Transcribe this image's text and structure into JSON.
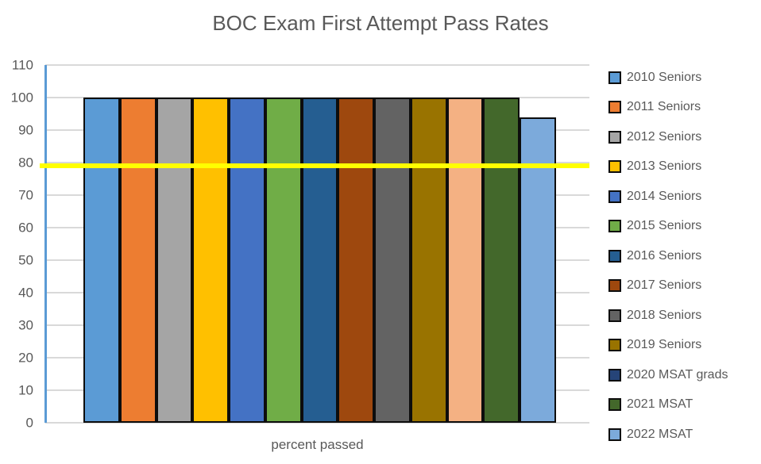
{
  "chart_data": {
    "type": "bar",
    "title": "BOC Exam First Attempt Pass Rates",
    "xlabel": "percent passed",
    "ylabel": "",
    "ylim": [
      0,
      110
    ],
    "yticks": [
      0,
      10,
      20,
      30,
      40,
      50,
      60,
      70,
      80,
      90,
      100,
      110
    ],
    "grid": true,
    "legend_position": "right",
    "series": [
      {
        "name": "2010 Seniors",
        "value": 100,
        "bar_color": "#5B9BD5",
        "legend_color": "#5B9BD5"
      },
      {
        "name": "2011 Seniors",
        "value": 100,
        "bar_color": "#ED7D31",
        "legend_color": "#ED7D31"
      },
      {
        "name": "2012 Seniors",
        "value": 100,
        "bar_color": "#A5A5A5",
        "legend_color": "#A5A5A5"
      },
      {
        "name": "2013 Seniors",
        "value": 100,
        "bar_color": "#FFC000",
        "legend_color": "#FFC000"
      },
      {
        "name": "2014 Seniors",
        "value": 100,
        "bar_color": "#4472C4",
        "legend_color": "#4472C4"
      },
      {
        "name": "2015 Seniors",
        "value": 100,
        "bar_color": "#70AD47",
        "legend_color": "#70AD47"
      },
      {
        "name": "2016 Seniors",
        "value": 100,
        "bar_color": "#255E91",
        "legend_color": "#255E91"
      },
      {
        "name": "2017 Seniors",
        "value": 100,
        "bar_color": "#9E480E",
        "legend_color": "#9E480E"
      },
      {
        "name": "2018 Seniors",
        "value": 100,
        "bar_color": "#636363",
        "legend_color": "#636363"
      },
      {
        "name": "2019 Seniors",
        "value": 100,
        "bar_color": "#997300",
        "legend_color": "#997300"
      },
      {
        "name": "2020 MSAT grads",
        "value": 100,
        "bar_color": "#F4B183",
        "legend_color": "#264478"
      },
      {
        "name": "2021 MSAT",
        "value": 100,
        "bar_color": "#43682B",
        "legend_color": "#43682B"
      },
      {
        "name": "2022 MSAT",
        "value": 94,
        "bar_color": "#7CAADB",
        "legend_color": "#7CAADB"
      }
    ],
    "reference_line": {
      "value": 79,
      "color": "#FFFF00"
    }
  },
  "colors": {
    "axis_line": "#5B9BD5",
    "gridline": "#D9D9D9",
    "text": "#595959",
    "bar_border": "#0D0D0D",
    "background": "#FFFFFF"
  }
}
